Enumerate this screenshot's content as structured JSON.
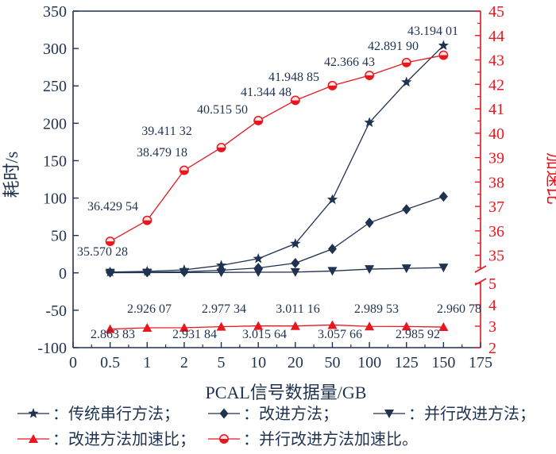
{
  "chart_data": {
    "type": "line",
    "xlabel": "PCAL信号数据量/GB",
    "ylabel_left": "耗时/s",
    "ylabel_right": "加速比",
    "x_axis_ticks": [
      "0",
      "0.5",
      "1",
      "2",
      "5",
      "10",
      "20",
      "50",
      "100",
      "125",
      "150",
      "175"
    ],
    "categories": [
      "0.5",
      "1",
      "2",
      "5",
      "10",
      "20",
      "50",
      "100",
      "125",
      "150"
    ],
    "y_left": {
      "min": -100,
      "max": 350,
      "ticks": [
        -100,
        -50,
        0,
        50,
        100,
        150,
        200,
        250,
        300,
        350
      ]
    },
    "y_right": {
      "broken": true,
      "lower_range": [
        2,
        5
      ],
      "upper_range": [
        34.5,
        45
      ],
      "lower_ticks": [
        2,
        3,
        4,
        5
      ],
      "upper_ticks": [
        35,
        36,
        37,
        38,
        39,
        40,
        41,
        42,
        43,
        44,
        45
      ]
    },
    "series": [
      {
        "name": "：传统串行方法；",
        "axis": "left",
        "marker": "star",
        "color": "#1f3350",
        "values": [
          1,
          2,
          4,
          10,
          19,
          39,
          98,
          201,
          255,
          304
        ]
      },
      {
        "name": "：改进方法；",
        "axis": "left",
        "marker": "diamond",
        "color": "#1f3350",
        "values": [
          0.5,
          0.8,
          1.5,
          3.5,
          6.5,
          13,
          32,
          67,
          85,
          102
        ]
      },
      {
        "name": "：并行改进方法；",
        "axis": "left",
        "marker": "triangle-down",
        "color": "#1f3350",
        "values": [
          0.2,
          0.3,
          0.4,
          0.6,
          0.8,
          1,
          2.5,
          5,
          6,
          7
        ]
      },
      {
        "name": "：改进方法加速比；",
        "axis": "right",
        "marker": "triangle-up",
        "color": "#e8161e",
        "values": [
          2.86383,
          2.92607,
          2.93184,
          2.97734,
          3.01564,
          3.01116,
          3.05766,
          2.98953,
          2.98592,
          2.96078
        ],
        "labels": [
          "2.863 83",
          "2.926 07",
          "2.931 84",
          "2.977 34",
          "3.015 64",
          "3.011 16",
          "3.057 66",
          "2.989 53",
          "2.985 92",
          "2.960 78"
        ]
      },
      {
        "name": "：并行改进方法加速比。",
        "axis": "right",
        "marker": "circle",
        "color": "#e8161e",
        "values": [
          35.57028,
          36.42954,
          38.47918,
          39.41132,
          40.5155,
          41.34448,
          41.94885,
          42.36643,
          42.8919,
          43.19401
        ],
        "labels": [
          "35.570 28",
          "36.429 54",
          "38.479 18",
          "39.411 32",
          "40.515 50",
          "41.344 48",
          "41.948 85",
          "42.366 43",
          "42.891 90",
          "43.194 01"
        ]
      }
    ]
  }
}
